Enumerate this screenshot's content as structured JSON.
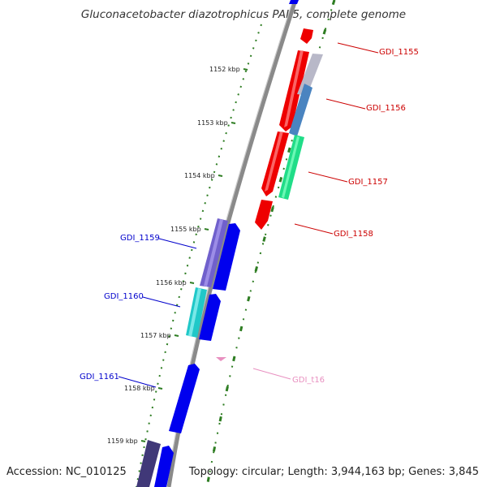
{
  "title": "Gluconacetobacter diazotrophicus PAI 5, complete genome",
  "footer": {
    "accession": "Accession: NC_010125",
    "topology": "Topology: circular; Length: 3,944,163 bp; Genes: 3,845"
  },
  "colors": {
    "backbone": "#8a8a8a",
    "ticks": "#2e7d22",
    "strand_plus_label": "#cc0000",
    "strand_minus_label": "#0000cc",
    "trna_label": "#e890c0"
  },
  "kbp_ticks": [
    "1152 kbp",
    "1153 kbp",
    "1154 kbp",
    "1155 kbp",
    "1156 kbp",
    "1157 kbp",
    "1158 kbp",
    "1159 kbp"
  ],
  "genes": [
    {
      "id": "GDI_1155",
      "strand": "+",
      "color": "#ff0000"
    },
    {
      "id": "GDI_1156",
      "strand": "+",
      "color": "#ff0000"
    },
    {
      "id": "GDI_1157",
      "strand": "+",
      "color": "#ff0000"
    },
    {
      "id": "GDI_1158",
      "strand": "+",
      "color": "#ff0000"
    },
    {
      "id": "GDI_1159",
      "strand": "-",
      "color": "#0000ee"
    },
    {
      "id": "GDI_1160",
      "strand": "-",
      "color": "#0000ee"
    },
    {
      "id": "GDI_1161",
      "strand": "-",
      "color": "#0000ee"
    },
    {
      "id": "GDI_t16",
      "strand": "+",
      "color": "#e890c0"
    }
  ]
}
